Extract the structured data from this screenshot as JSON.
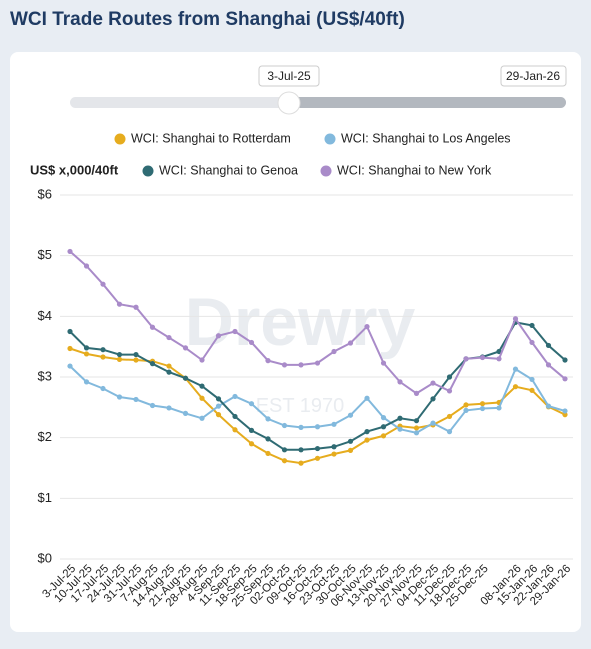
{
  "header": {
    "title": "WCI Trade Routes from Shanghai (US$/40ft)"
  },
  "watermark": {
    "brand": "Drewry",
    "est": "EST 1970"
  },
  "chart_data": {
    "type": "line",
    "y_label": "US$ x,000/40ft",
    "categories": [
      "3-Jul-25",
      "10-Jul-25",
      "17-Jul-25",
      "24-Jul-25",
      "31-Jul-25",
      "7-Aug-25",
      "14-Aug-25",
      "21-Aug-25",
      "28-Aug-25",
      "4-Sep-25",
      "11-Sep-25",
      "18-Sep-25",
      "25-Sep-25",
      "02-Oct-25",
      "09-Oct-25",
      "16-Oct-25",
      "23-Oct-25",
      "30-Oct-25",
      "06-Nov-25",
      "13-Nov-25",
      "20-Nov-25",
      "27-Nov-25",
      "04-Dec-25",
      "11-Dec-25",
      "18-Dec-25",
      "25-Dec-25",
      null,
      "08-Jan-26",
      "15-Jan-26",
      "22-Jan-26",
      "29-Jan-26"
    ],
    "series": [
      {
        "name": "WCI: Shanghai to Rotterdam",
        "color": "#e6ac1e",
        "values": [
          3.47,
          3.38,
          3.33,
          3.29,
          3.28,
          3.26,
          3.18,
          2.98,
          2.65,
          2.38,
          2.13,
          1.9,
          1.74,
          1.62,
          1.58,
          1.66,
          1.73,
          1.79,
          1.96,
          2.03,
          2.19,
          2.16,
          2.21,
          2.35,
          2.54,
          2.56,
          2.58,
          2.84,
          2.78,
          2.51,
          2.38
        ]
      },
      {
        "name": "WCI: Shanghai to Los Angeles",
        "color": "#82b9dd",
        "values": [
          3.18,
          2.92,
          2.81,
          2.67,
          2.63,
          2.53,
          2.49,
          2.4,
          2.32,
          2.52,
          2.68,
          2.56,
          2.31,
          2.2,
          2.17,
          2.18,
          2.22,
          2.37,
          2.65,
          2.33,
          2.14,
          2.08,
          2.24,
          2.1,
          2.45,
          2.48,
          2.49,
          3.13,
          2.96,
          2.52,
          2.44
        ]
      },
      {
        "name": "WCI: Shanghai to Genoa",
        "color": "#2f6b73",
        "values": [
          3.75,
          3.48,
          3.45,
          3.37,
          3.37,
          3.22,
          3.08,
          2.98,
          2.85,
          2.64,
          2.35,
          2.12,
          1.98,
          1.8,
          1.8,
          1.82,
          1.85,
          1.94,
          2.1,
          2.18,
          2.32,
          2.28,
          2.64,
          3.0,
          3.3,
          3.33,
          3.42,
          3.9,
          3.85,
          3.52,
          3.28
        ]
      },
      {
        "name": "WCI: Shanghai to New York",
        "color": "#a98bc9",
        "values": [
          5.07,
          4.83,
          4.53,
          4.2,
          4.15,
          3.82,
          3.65,
          3.48,
          3.28,
          3.68,
          3.75,
          3.57,
          3.27,
          3.2,
          3.2,
          3.23,
          3.42,
          3.56,
          3.83,
          3.23,
          2.92,
          2.73,
          2.9,
          2.77,
          3.3,
          3.32,
          3.3,
          3.96,
          3.57,
          3.2,
          2.97
        ]
      }
    ],
    "ylim": [
      0,
      6
    ],
    "yticks": [
      {
        "value": 0,
        "label": "$0"
      },
      {
        "value": 1,
        "label": "$1"
      },
      {
        "value": 2,
        "label": "$2"
      },
      {
        "value": 3,
        "label": "$3"
      },
      {
        "value": 4,
        "label": "$4"
      },
      {
        "value": 5,
        "label": "$5"
      },
      {
        "value": 6,
        "label": "$6"
      }
    ],
    "grid": true
  }
}
